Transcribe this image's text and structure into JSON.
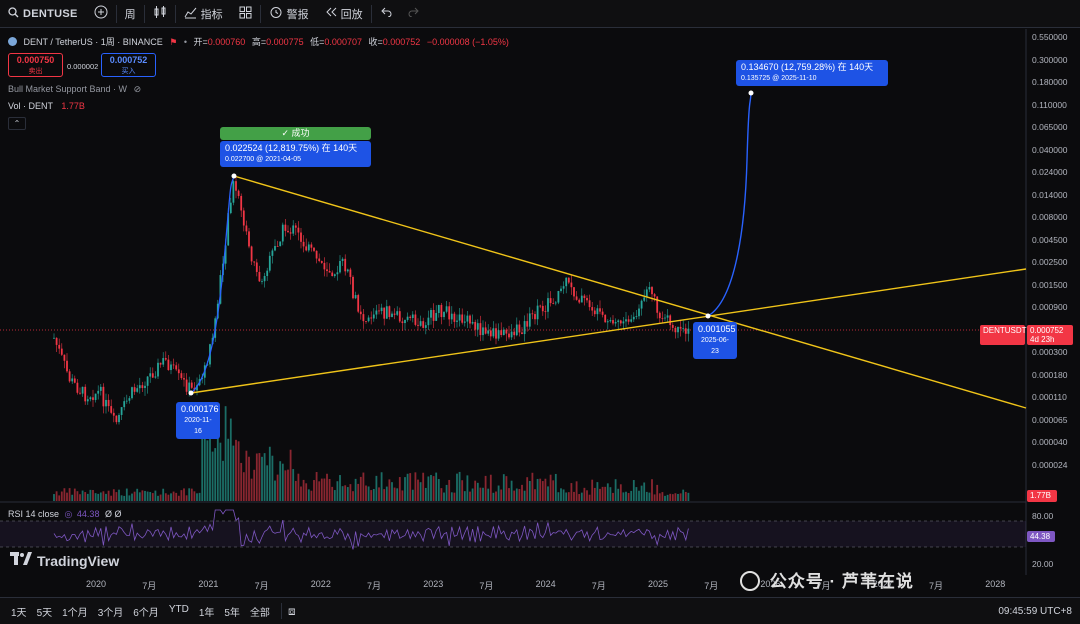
{
  "toolbar": {
    "symbol": "DENTUSE",
    "interval": "周",
    "indicators": "指标",
    "alert": "警报",
    "replay": "回放"
  },
  "legend": {
    "title": "DENT / TetherUS · 1周 · BINANCE",
    "open_label": "开=",
    "open": "0.000760",
    "high_label": "高=",
    "high": "0.000775",
    "low_label": "低=",
    "low": "0.000707",
    "close_label": "收=",
    "close": "0.000752",
    "change": "−0.000008 (−1.05%)",
    "sell_price": "0.000750",
    "sell_label": "卖出",
    "spread": "0.000002",
    "buy_price": "0.000752",
    "buy_label": "买入",
    "indicator_name": "Bull Market Support Band · W",
    "vol_label": "Vol · DENT",
    "vol_value": "1.77B",
    "rsi_label": "RSI 14 close",
    "rsi_value": "44.38",
    "rsi_extra": "Ø Ø"
  },
  "price_axis": {
    "ticks": [
      "0.550000",
      "0.300000",
      "0.180000",
      "0.110000",
      "0.065000",
      "0.040000",
      "0.024000",
      "0.014000",
      "0.008000",
      "0.004500",
      "0.002500",
      "0.001500",
      "0.000900",
      "0.000500",
      "0.000300",
      "0.000180",
      "0.000110",
      "0.000065",
      "0.000040",
      "0.000024"
    ],
    "symbol_tag": "DENTUSDT",
    "current_price": "0.000752",
    "countdown": "4d 23h",
    "vol_tag": "1.77B",
    "rsi_ticks": [
      "80.00",
      "20.00"
    ],
    "rsi_tag": "44.38"
  },
  "time_axis": {
    "ticks": [
      "2020",
      "7月",
      "2021",
      "7月",
      "2022",
      "7月",
      "2023",
      "7月",
      "2024",
      "7月",
      "2025",
      "7月",
      "2026",
      "7月",
      "2027",
      "7月",
      "2028"
    ]
  },
  "annotations": {
    "success": "✓ 成功",
    "target1_main": "0.022524 (12,819.75%) 在 140天",
    "target1_sub": "0.022700 @ 2021-04-05",
    "start_price": "0.000176",
    "start_date": "2020-11-16",
    "pivot_price": "0.001055",
    "pivot_date": "2025-06-23",
    "target2_main": "0.134670 (12,759.28%) 在 140天",
    "target2_sub": "0.135725 @ 2025-11-10"
  },
  "branding": {
    "logo": "TradingView",
    "watermark": "公众号 · 芦苇在说"
  },
  "bottom_bar": {
    "ranges": [
      "1天",
      "5天",
      "1个月",
      "3个月",
      "6个月",
      "YTD",
      "1年",
      "5年",
      "全部"
    ],
    "clock": "09:45:59 UTC+8"
  },
  "colors": {
    "up": "#26a69a",
    "down": "#f23645",
    "trend": "#f0c419",
    "projection": "#2962ff",
    "rsi": "#7e57c2"
  }
}
